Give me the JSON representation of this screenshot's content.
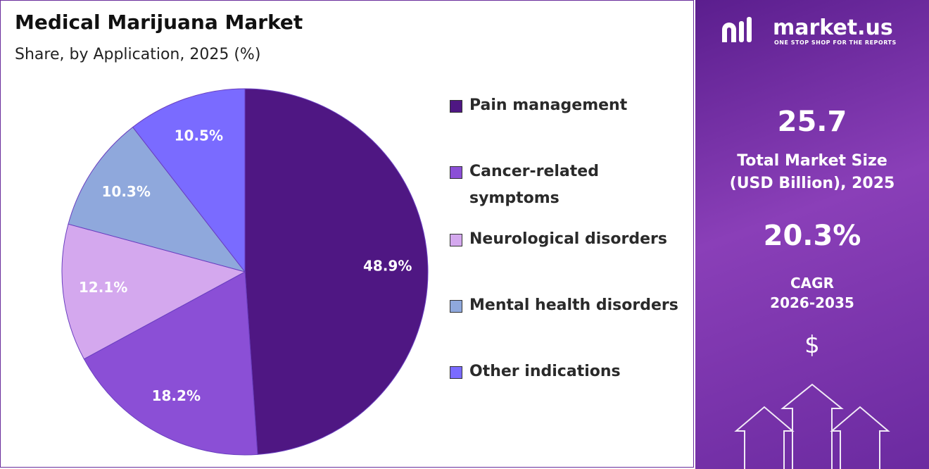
{
  "chart_data": {
    "type": "pie",
    "title": "Medical Marijuana Market",
    "subtitle": "Share, by Application, 2025 (%)",
    "categories": [
      "Pain management",
      "Cancer-related symptoms",
      "Neurological disorders",
      "Mental health disorders",
      "Other indications"
    ],
    "values": [
      48.9,
      18.2,
      12.1,
      10.3,
      10.5
    ],
    "value_labels": [
      "48.9%",
      "18.2%",
      "12.1%",
      "10.3%",
      "10.5%"
    ],
    "colors": [
      "#4f1783",
      "#8b4fd6",
      "#d4a8ee",
      "#8fa8dc",
      "#7a6bff"
    ],
    "legend": "right"
  },
  "brand": {
    "name": "market.us",
    "tagline": "ONE STOP SHOP FOR THE REPORTS"
  },
  "summary": {
    "market_size": "25.7",
    "market_size_label": [
      "Total Market Size",
      "(USD Billion), 2025"
    ],
    "cagr": "20.3%",
    "cagr_label": [
      "CAGR",
      "2026-2035"
    ],
    "symbol": "$"
  }
}
